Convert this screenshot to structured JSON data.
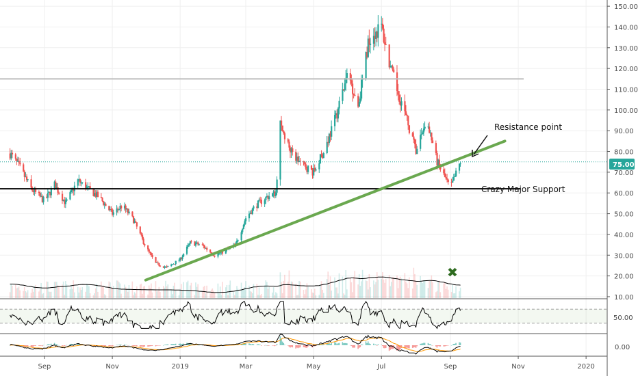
{
  "chart_data": {
    "type": "candlestick",
    "price_pane": {
      "y_ticks": [
        "150.00",
        "140.00",
        "130.00",
        "120.00",
        "110.00",
        "100.00",
        "90.00",
        "80.00",
        "70.00",
        "60.00",
        "50.00",
        "40.00",
        "30.00",
        "20.00",
        "10.00"
      ],
      "y_tick_values": [
        150,
        140,
        130,
        120,
        110,
        100,
        90,
        80,
        70,
        60,
        50,
        40,
        30,
        20,
        10
      ],
      "ylim": [
        9,
        153
      ],
      "last_price_label": "75.00",
      "last_price": 75,
      "close_series_dates": [
        "2018-08-01",
        "2018-08-10",
        "2018-08-20",
        "2018-09-01",
        "2018-09-10",
        "2018-09-20",
        "2018-10-01",
        "2018-10-10",
        "2018-10-20",
        "2018-11-01",
        "2018-11-10",
        "2018-11-20",
        "2018-12-01",
        "2018-12-10",
        "2018-12-20",
        "2019-01-01",
        "2019-01-10",
        "2019-01-20",
        "2019-02-01",
        "2019-02-10",
        "2019-02-20",
        "2019-03-01",
        "2019-03-10",
        "2019-03-20",
        "2019-03-28",
        "2019-04-01",
        "2019-04-10",
        "2019-04-20",
        "2019-05-01",
        "2019-05-10",
        "2019-05-20",
        "2019-06-01",
        "2019-06-10",
        "2019-06-20",
        "2019-07-01",
        "2019-07-10",
        "2019-07-20",
        "2019-08-01",
        "2019-08-10",
        "2019-08-20",
        "2019-09-01",
        "2019-09-10"
      ],
      "close_series": [
        79,
        72,
        62,
        56,
        64,
        55,
        66,
        62,
        58,
        50,
        54,
        47,
        34,
        26,
        24,
        28,
        36,
        35,
        30,
        32,
        35,
        48,
        54,
        58,
        60,
        93,
        80,
        74,
        70,
        80,
        95,
        118,
        102,
        135,
        140,
        118,
        102,
        80,
        95,
        75,
        62,
        75
      ],
      "horizontal_lines": [
        {
          "name": "support",
          "value": 62,
          "color": "#000000"
        },
        {
          "name": "resistance-line",
          "value": 115,
          "color": "#bdbdbd"
        }
      ],
      "trendline": {
        "start": {
          "date": "2018-12-01",
          "value": 18
        },
        "end": {
          "date": "2019-10-20",
          "value": 85
        },
        "color": "#6aa84f"
      }
    },
    "annotations": {
      "resistance_label": "Resistance point",
      "support_label": "Crazy Major Support",
      "x_marker_symbol": "✖"
    },
    "rsi_pane": {
      "y_tick_label": "50.00",
      "y_tick_value": 50,
      "band_upper": 70,
      "band_lower": 30
    },
    "macd_pane": {
      "y_tick_label": "0.00",
      "y_tick_value": 0
    },
    "x_axis": {
      "labels": [
        {
          "text": "Sep",
          "date": "2018-09-01"
        },
        {
          "text": "Nov",
          "date": "2018-11-01"
        },
        {
          "text": "2019",
          "date": "2019-01-01"
        },
        {
          "text": "Mar",
          "date": "2019-03-01"
        },
        {
          "text": "May",
          "date": "2019-05-01"
        },
        {
          "text": "Jul",
          "date": "2019-07-01"
        },
        {
          "text": "Sep",
          "date": "2019-09-01"
        },
        {
          "text": "Nov",
          "date": "2019-11-01"
        },
        {
          "text": "2020",
          "date": "2020-01-01"
        }
      ],
      "range": [
        "2018-07-23",
        "2020-01-20"
      ]
    },
    "colors": {
      "up": "#26a69a",
      "down": "#ef5350",
      "price_marker_bg": "#26a69a",
      "grid": "#efefef"
    }
  }
}
